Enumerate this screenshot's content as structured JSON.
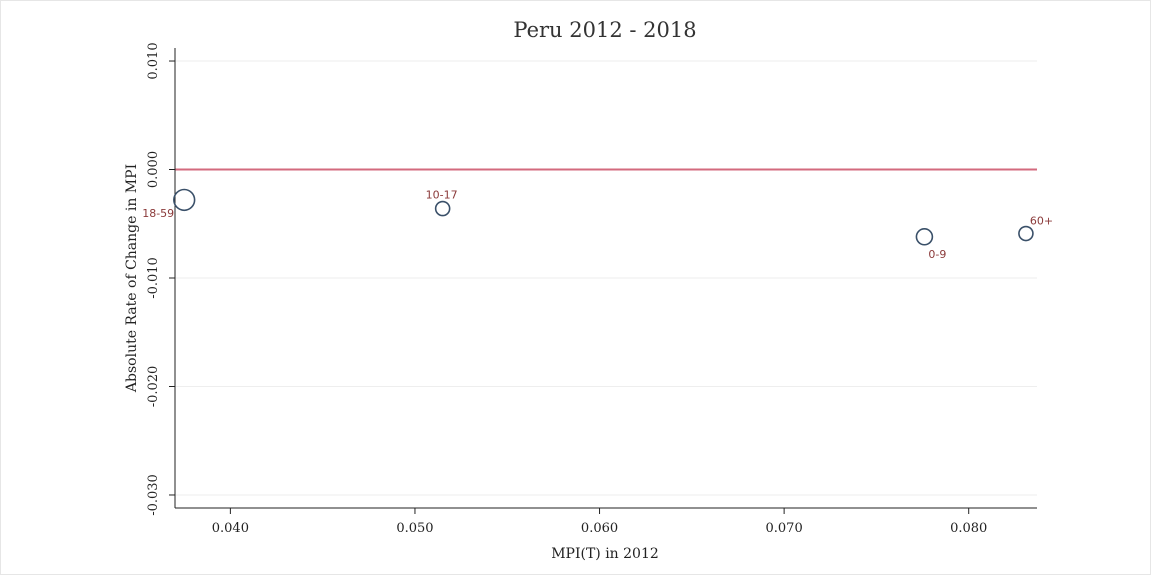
{
  "chart_data": {
    "type": "scatter",
    "title": "Peru 2012 - 2018",
    "xlabel": "MPI(T) in 2012",
    "ylabel": "Absolute Rate of Change in MPI",
    "xlim": [
      0.037,
      0.0837
    ],
    "ylim": [
      -0.0312,
      0.0112
    ],
    "x_ticks": [
      0.04,
      0.05,
      0.06,
      0.07,
      0.08
    ],
    "x_tick_labels": [
      "0.040",
      "0.050",
      "0.060",
      "0.070",
      "0.080"
    ],
    "y_ticks": [
      0.01,
      0.0,
      -0.01,
      -0.02,
      -0.03
    ],
    "y_tick_labels": [
      "0.010",
      "0.000",
      "-0.010",
      "-0.020",
      "-0.030"
    ],
    "y_grid": true,
    "reference_line": {
      "y": 0.0,
      "color": "#d36a7e"
    },
    "marker_color": "#3a5069",
    "label_color": "#8b3a3a",
    "points": [
      {
        "label": "18-59",
        "x": 0.0375,
        "y": -0.0028,
        "size": 2.2
      },
      {
        "label": "10-17",
        "x": 0.0515,
        "y": -0.0036,
        "size": 1.0
      },
      {
        "label": "0-9",
        "x": 0.0776,
        "y": -0.0062,
        "size": 1.3
      },
      {
        "label": "60+",
        "x": 0.0831,
        "y": -0.0059,
        "size": 1.0
      }
    ]
  }
}
